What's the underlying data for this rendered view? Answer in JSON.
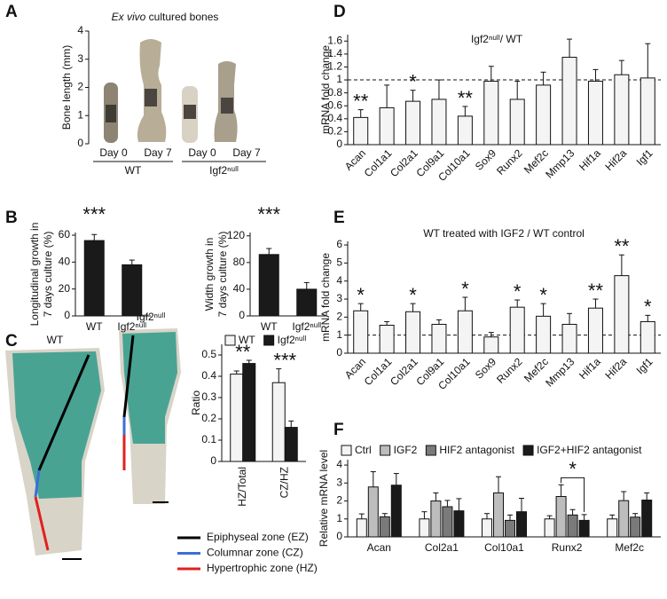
{
  "panel_labels": [
    "A",
    "B",
    "C",
    "D",
    "E",
    "F"
  ],
  "panel_c": {
    "image_labels": [
      "WT",
      "Igf2ⁿᵘˡˡ"
    ],
    "zones": [
      {
        "name": "Epiphyseal zone (EZ)",
        "color": "#000000"
      },
      {
        "name": "Columnar zone (CZ)",
        "color": "#3a6fd8"
      },
      {
        "name": "Hypertrophic zone (HZ)",
        "color": "#e02020"
      }
    ]
  },
  "chart_data": [
    {
      "type": "photo",
      "title": {
        "italic": "Ex vivo",
        "text": "cultured bones"
      },
      "ylabel": "Bone length (mm)",
      "ylim": [
        0,
        4
      ],
      "yticks": [
        0,
        1,
        2,
        3,
        4
      ],
      "categories": [
        "Day 0",
        "Day 7",
        "Day 0",
        "Day 7"
      ],
      "groups": [
        "WT",
        "Igf2ⁿᵘˡˡ"
      ]
    },
    {
      "type": "bar",
      "ylabel": [
        "Longitudinal growth in",
        "7 days culture (%)"
      ],
      "ylim": [
        0,
        62
      ],
      "yticks": [
        0,
        20,
        40,
        60
      ],
      "categories": [
        "WT",
        "Igf2ⁿᵘˡˡ"
      ],
      "series": [
        {
          "color": "#1a1a1a",
          "values": [
            56,
            38
          ],
          "errors": [
            4.5,
            3.5
          ]
        }
      ],
      "significance": [
        "***"
      ]
    },
    {
      "type": "bar",
      "ylabel": [
        "Width growth in",
        "7 days culture (%)"
      ],
      "ylim": [
        0,
        125
      ],
      "yticks": [
        0,
        40,
        80,
        120
      ],
      "categories": [
        "WT",
        "Igf2ⁿᵘˡˡ"
      ],
      "series": [
        {
          "color": "#1a1a1a",
          "values": [
            92,
            40
          ],
          "errors": [
            9,
            10
          ]
        }
      ],
      "significance": [
        "***"
      ]
    },
    {
      "type": "bar",
      "ylabel": "Ratio",
      "ylim": [
        0,
        0.55
      ],
      "yticks": [
        0,
        0.1,
        0.2,
        0.3,
        0.4,
        0.5
      ],
      "categories": [
        "HZ/Total",
        "CZ/HZ"
      ],
      "series": [
        {
          "name": "WT",
          "color": "#f4f4f4",
          "values": [
            0.41,
            0.37
          ],
          "errors": [
            0.015,
            0.065
          ]
        },
        {
          "name": "Igf2ⁿᵘˡˡ",
          "color": "#1a1a1a",
          "values": [
            0.46,
            0.16
          ],
          "errors": [
            0.015,
            0.03
          ]
        }
      ],
      "significance": [
        "**",
        "***"
      ]
    },
    {
      "type": "bar",
      "title": "Igf2ⁿᵘˡˡ/ WT",
      "ylabel": "mRNA fold change",
      "ylim": [
        0,
        1.7
      ],
      "yticks": [
        0,
        0.2,
        0.4,
        0.6,
        0.8,
        1,
        1.2,
        1.4,
        1.6
      ],
      "refline": 1,
      "categories": [
        "Acan",
        "Col1a1",
        "Col2a1",
        "Col9a1",
        "Col10a1",
        "Sox9",
        "Runx2",
        "Mef2c",
        "Mmp13",
        "Hif1a",
        "Hif2a",
        "Igf1"
      ],
      "series": [
        {
          "color": "#f4f4f4",
          "values": [
            0.42,
            0.57,
            0.67,
            0.7,
            0.44,
            0.98,
            0.7,
            0.92,
            1.35,
            0.98,
            1.08,
            1.03
          ],
          "errors": [
            0.12,
            0.35,
            0.17,
            0.3,
            0.15,
            0.23,
            0.28,
            0.2,
            0.28,
            0.18,
            0.22,
            0.53
          ]
        }
      ],
      "significance": [
        "**",
        null,
        "*",
        null,
        "**",
        null,
        null,
        null,
        null,
        null,
        null,
        null
      ]
    },
    {
      "type": "bar",
      "title": "WT treated with IGF2 / WT control",
      "ylabel": "mRNA fold change",
      "ylim": [
        0,
        6.2
      ],
      "yticks": [
        0,
        1,
        2,
        3,
        4,
        5,
        6
      ],
      "refline": 1,
      "categories": [
        "Acan",
        "Col1a1",
        "Col2a1",
        "Col9a1",
        "Col10a1",
        "Sox9",
        "Runx2",
        "Mef2c",
        "Mmp13",
        "Hif1a",
        "Hif2a",
        "Igf1"
      ],
      "series": [
        {
          "color": "#f4f4f4",
          "values": [
            2.35,
            1.55,
            2.3,
            1.6,
            2.35,
            0.9,
            2.55,
            2.05,
            1.6,
            2.5,
            4.3,
            1.75
          ],
          "errors": [
            0.4,
            0.2,
            0.45,
            0.25,
            0.75,
            0.25,
            0.4,
            0.7,
            0.6,
            0.5,
            1.15,
            0.35
          ]
        }
      ],
      "significance": [
        "*",
        null,
        "*",
        null,
        "*",
        null,
        "*",
        "*",
        null,
        "**",
        "**",
        "*"
      ]
    },
    {
      "type": "bar",
      "ylabel": "Relative mRNA level",
      "ylim": [
        0,
        4.3
      ],
      "yticks": [
        0,
        1,
        2,
        3,
        4
      ],
      "categories": [
        "Acan",
        "Col2a1",
        "Col10a1",
        "Runx2",
        "Mef2c"
      ],
      "series": [
        {
          "name": "Ctrl",
          "color": "#f4f4f4",
          "values": [
            1,
            1,
            1,
            1,
            1
          ],
          "errors": [
            0.28,
            0.4,
            0.3,
            0.18,
            0.22
          ]
        },
        {
          "name": "IGF2",
          "color": "#bdbdbd",
          "values": [
            2.78,
            2.0,
            2.45,
            2.25,
            2.02
          ],
          "errors": [
            0.85,
            0.45,
            0.9,
            0.65,
            0.5
          ]
        },
        {
          "name": "HIF2 antagonist",
          "color": "#7a7a7a",
          "values": [
            1.12,
            1.68,
            0.92,
            1.22,
            1.1
          ],
          "errors": [
            0.18,
            0.35,
            0.3,
            0.3,
            0.2
          ]
        },
        {
          "name": "IGF2+HIF2 antagonist",
          "color": "#1a1a1a",
          "values": [
            2.88,
            1.45,
            1.4,
            0.92,
            2.05
          ],
          "errors": [
            0.65,
            0.68,
            0.75,
            0.32,
            0.4
          ]
        }
      ],
      "bracket": {
        "text": "*",
        "category": 3,
        "series": [
          1,
          3
        ]
      }
    }
  ]
}
